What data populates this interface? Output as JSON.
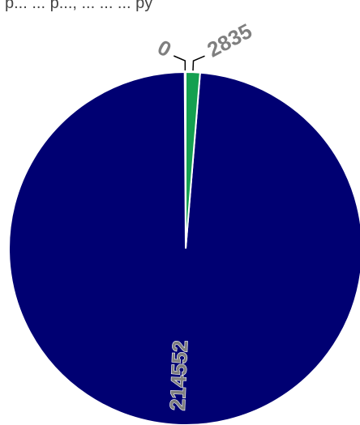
{
  "chart_data": {
    "type": "pie",
    "values": [
      214552,
      2835,
      0
    ],
    "labels": [
      "214552",
      "2835",
      "0"
    ],
    "colors": [
      "#000072",
      "#14a050",
      "#f2f2f2"
    ],
    "title": "",
    "legend": "none"
  },
  "header_fragment": {
    "text": "p... ... p..., ... ... ... py"
  }
}
